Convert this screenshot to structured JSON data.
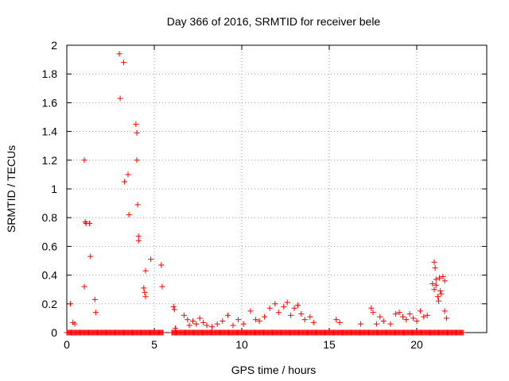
{
  "chart_data": {
    "type": "scatter",
    "title": "Day 366 of 2016, SRMTID for receiver bele",
    "xlabel": "GPS time / hours",
    "ylabel": "SRMTID / TECUs",
    "xlim": [
      0,
      24
    ],
    "ylim": [
      0,
      2
    ],
    "x_ticks": [
      0,
      5,
      10,
      15,
      20
    ],
    "x_tick_labels": [
      "0",
      "5",
      "10",
      "15",
      "20"
    ],
    "y_ticks": [
      0,
      0.2,
      0.4,
      0.6,
      0.8,
      1,
      1.2,
      1.4,
      1.6,
      1.8,
      2
    ],
    "y_tick_labels": [
      "0",
      "0.2",
      "0.4",
      "0.6",
      "0.8",
      "1",
      "1.2",
      "1.4",
      "1.6",
      "1.8",
      "2"
    ],
    "grid": true,
    "marker": "+",
    "color": "#ff0000",
    "series": [
      {
        "name": "SRMTID",
        "points": [
          [
            0.2,
            0.2
          ],
          [
            0.35,
            0.07
          ],
          [
            0.45,
            0.06
          ],
          [
            1.0,
            1.2
          ],
          [
            1.05,
            0.77
          ],
          [
            1.1,
            0.76
          ],
          [
            1.0,
            0.32
          ],
          [
            1.3,
            0.76
          ],
          [
            1.35,
            0.53
          ],
          [
            1.6,
            0.23
          ],
          [
            1.65,
            0.14
          ],
          [
            3.0,
            1.94
          ],
          [
            3.05,
            1.63
          ],
          [
            3.25,
            1.88
          ],
          [
            3.3,
            1.05
          ],
          [
            3.5,
            1.1
          ],
          [
            3.55,
            0.82
          ],
          [
            3.95,
            1.45
          ],
          [
            4.0,
            1.39
          ],
          [
            4.0,
            1.2
          ],
          [
            4.05,
            0.89
          ],
          [
            4.1,
            0.67
          ],
          [
            4.1,
            0.64
          ],
          [
            4.4,
            0.31
          ],
          [
            4.45,
            0.28
          ],
          [
            4.5,
            0.25
          ],
          [
            4.5,
            0.43
          ],
          [
            4.8,
            0.51
          ],
          [
            5.4,
            0.47
          ],
          [
            5.45,
            0.32
          ],
          [
            6.1,
            0.18
          ],
          [
            6.15,
            0.16
          ],
          [
            6.2,
            0.03
          ],
          [
            6.7,
            0.12
          ],
          [
            6.9,
            0.09
          ],
          [
            7.0,
            0.05
          ],
          [
            7.2,
            0.08
          ],
          [
            7.4,
            0.06
          ],
          [
            7.6,
            0.1
          ],
          [
            7.8,
            0.07
          ],
          [
            8.0,
            0.05
          ],
          [
            8.3,
            0.04
          ],
          [
            8.6,
            0.06
          ],
          [
            8.9,
            0.08
          ],
          [
            9.2,
            0.12
          ],
          [
            9.5,
            0.05
          ],
          [
            9.8,
            0.09
          ],
          [
            10.1,
            0.06
          ],
          [
            10.5,
            0.15
          ],
          [
            10.8,
            0.09
          ],
          [
            11.0,
            0.08
          ],
          [
            11.3,
            0.11
          ],
          [
            11.6,
            0.17
          ],
          [
            11.9,
            0.2
          ],
          [
            12.1,
            0.14
          ],
          [
            12.4,
            0.18
          ],
          [
            12.6,
            0.21
          ],
          [
            12.8,
            0.12
          ],
          [
            13.0,
            0.17
          ],
          [
            13.2,
            0.19
          ],
          [
            13.4,
            0.13
          ],
          [
            13.6,
            0.09
          ],
          [
            13.9,
            0.11
          ],
          [
            14.1,
            0.07
          ],
          [
            15.4,
            0.09
          ],
          [
            15.6,
            0.07
          ],
          [
            16.8,
            0.06
          ],
          [
            17.4,
            0.17
          ],
          [
            17.5,
            0.14
          ],
          [
            17.7,
            0.06
          ],
          [
            17.9,
            0.11
          ],
          [
            18.1,
            0.08
          ],
          [
            18.5,
            0.06
          ],
          [
            18.8,
            0.13
          ],
          [
            19.0,
            0.14
          ],
          [
            19.2,
            0.11
          ],
          [
            19.4,
            0.09
          ],
          [
            19.6,
            0.13
          ],
          [
            19.8,
            0.1
          ],
          [
            20.0,
            0.08
          ],
          [
            20.2,
            0.15
          ],
          [
            20.4,
            0.11
          ],
          [
            20.6,
            0.12
          ],
          [
            20.9,
            0.34
          ],
          [
            21.0,
            0.3
          ],
          [
            21.0,
            0.49
          ],
          [
            21.05,
            0.45
          ],
          [
            21.1,
            0.33
          ],
          [
            21.1,
            0.37
          ],
          [
            21.2,
            0.25
          ],
          [
            21.25,
            0.22
          ],
          [
            21.3,
            0.38
          ],
          [
            21.35,
            0.29
          ],
          [
            21.4,
            0.27
          ],
          [
            21.5,
            0.39
          ],
          [
            21.6,
            0.36
          ],
          [
            21.6,
            0.15
          ],
          [
            21.7,
            0.1
          ]
        ]
      }
    ],
    "zero_bands": [
      [
        0.0,
        5.5
      ],
      [
        6.0,
        22.7
      ]
    ]
  }
}
